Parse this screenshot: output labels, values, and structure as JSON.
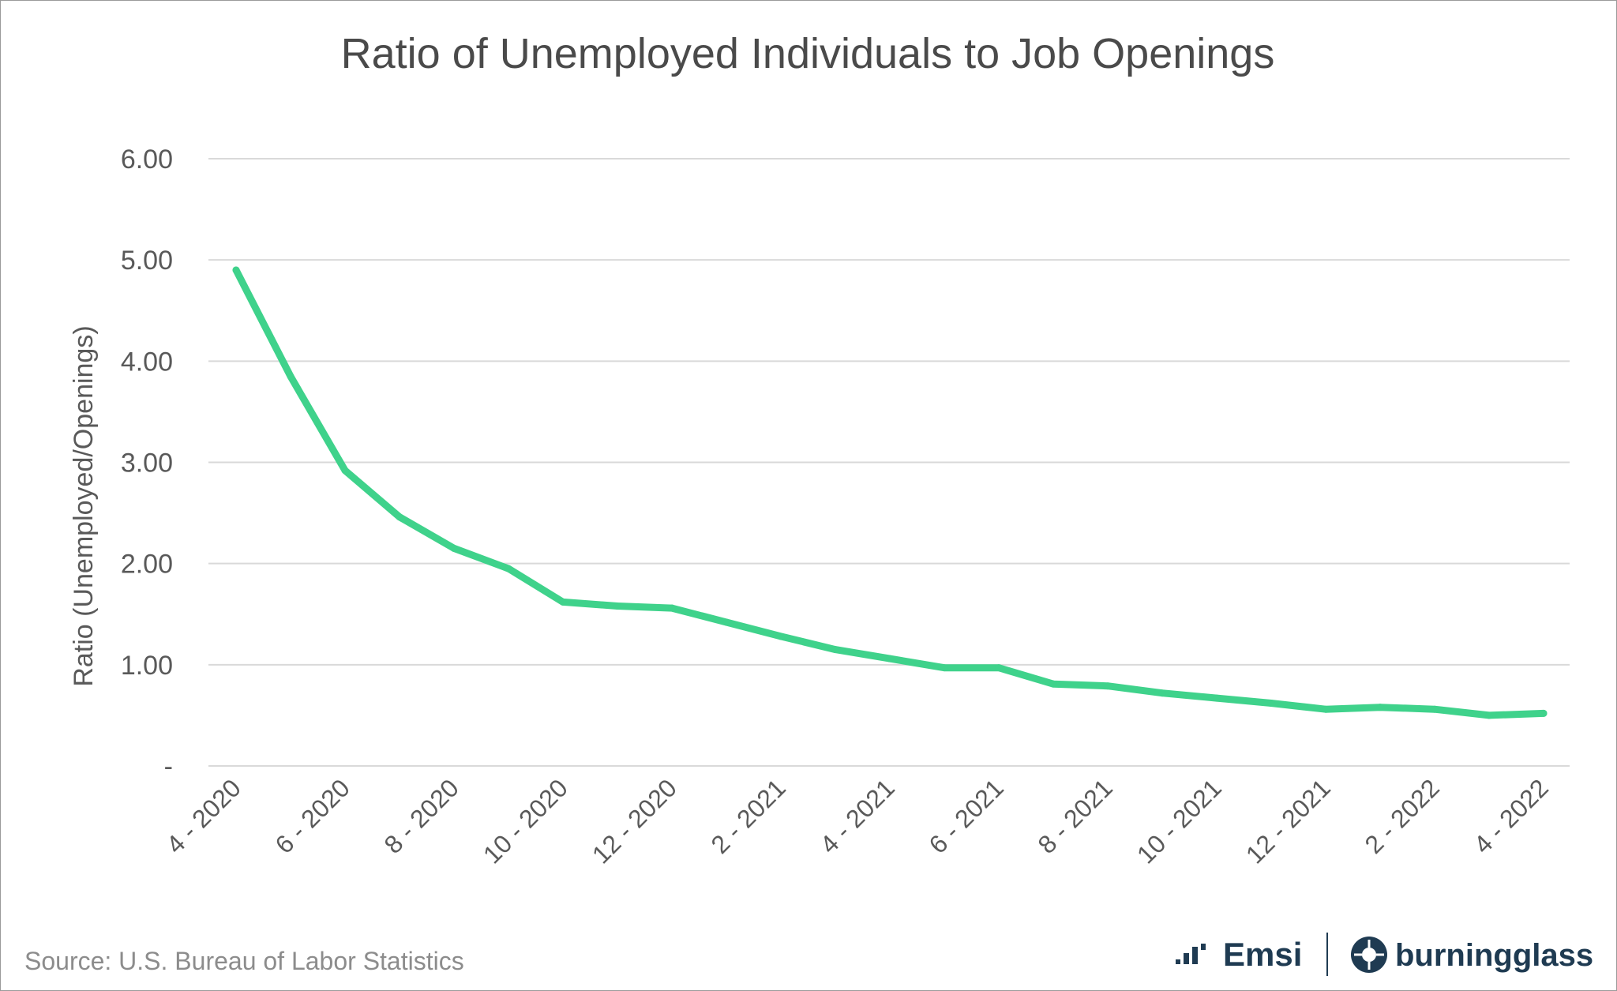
{
  "chart_data": {
    "type": "line",
    "title": "Ratio of Unemployed Individuals to Job Openings",
    "ylabel": "Ratio (Unemployed/Openings)",
    "xlabel": "",
    "ylim": [
      0,
      6
    ],
    "y_ticks": [
      {
        "value": 0,
        "label": "-"
      },
      {
        "value": 1,
        "label": "1.00"
      },
      {
        "value": 2,
        "label": "2.00"
      },
      {
        "value": 3,
        "label": "3.00"
      },
      {
        "value": 4,
        "label": "4.00"
      },
      {
        "value": 5,
        "label": "5.00"
      },
      {
        "value": 6,
        "label": "6.00"
      }
    ],
    "x": [
      "4 - 2020",
      "5 - 2020",
      "6 - 2020",
      "7 - 2020",
      "8 - 2020",
      "9 - 2020",
      "10 - 2020",
      "11 - 2020",
      "12 - 2020",
      "1 - 2021",
      "2 - 2021",
      "3 - 2021",
      "4 - 2021",
      "5 - 2021",
      "6 - 2021",
      "7 - 2021",
      "8 - 2021",
      "9 - 2021",
      "10 - 2021",
      "11 - 2021",
      "12 - 2021",
      "1 - 2022",
      "2 - 2022",
      "3 - 2022",
      "4 - 2022"
    ],
    "x_tick_labels": [
      "4 - 2020",
      "6 - 2020",
      "8 - 2020",
      "10 - 2020",
      "12 - 2020",
      "2 - 2021",
      "4 - 2021",
      "6 - 2021",
      "8 - 2021",
      "10 - 2021",
      "12 - 2021",
      "2 - 2022",
      "4 - 2022"
    ],
    "grid": true,
    "legend": "none",
    "series": [
      {
        "values": [
          4.9,
          3.85,
          2.92,
          2.46,
          2.15,
          1.95,
          1.62,
          1.58,
          1.56,
          1.42,
          1.28,
          1.15,
          1.06,
          0.97,
          0.97,
          0.81,
          0.79,
          0.72,
          0.67,
          0.62,
          0.56,
          0.58,
          0.56,
          0.5,
          0.52
        ],
        "color": "#3fd28b"
      }
    ]
  },
  "footer": {
    "source": "Source:  U.S. Bureau of Labor Statistics",
    "logo_emsi": "Emsi",
    "logo_burningglass": "burningglass"
  },
  "colors": {
    "line": "#3fd28b",
    "grid": "#d9d9d9",
    "logo": "#1f3b52"
  }
}
